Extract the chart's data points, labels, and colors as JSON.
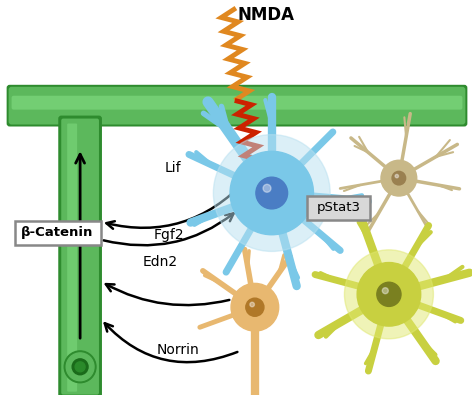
{
  "background_color": "#ffffff",
  "green_body": "#5cb85c",
  "green_edge": "#2e8b2e",
  "green_stem": "#4aaa4a",
  "green_dark_center": "#1a6b1a",
  "arrow_color": "#111111",
  "lif_label": "Lif",
  "fgf2_label": "Fgf2",
  "edn2_label": "Edn2",
  "norrin_label": "Norrin",
  "nmda_label": "NMDA",
  "beta_cat_label": "β-Catenin",
  "pstat3_label": "pStat3",
  "neuron_blue_body": "#7ac8e8",
  "neuron_blue_glow": "#b8e0f0",
  "neuron_blue_center": "#4a7dc4",
  "neuron_tan_body": "#c8b888",
  "neuron_tan_center": "#9a8050",
  "neuron_yellow_body": "#c8d040",
  "neuron_yellow_light": "#e0e870",
  "neuron_yellow_center": "#7a8020",
  "neuron_orange_body": "#e8b870",
  "neuron_orange_center": "#b07828",
  "nmda_orange": "#e08820",
  "nmda_yellow": "#e8b830",
  "nmda_red": "#cc2200",
  "nmda_orange2": "#e05010"
}
